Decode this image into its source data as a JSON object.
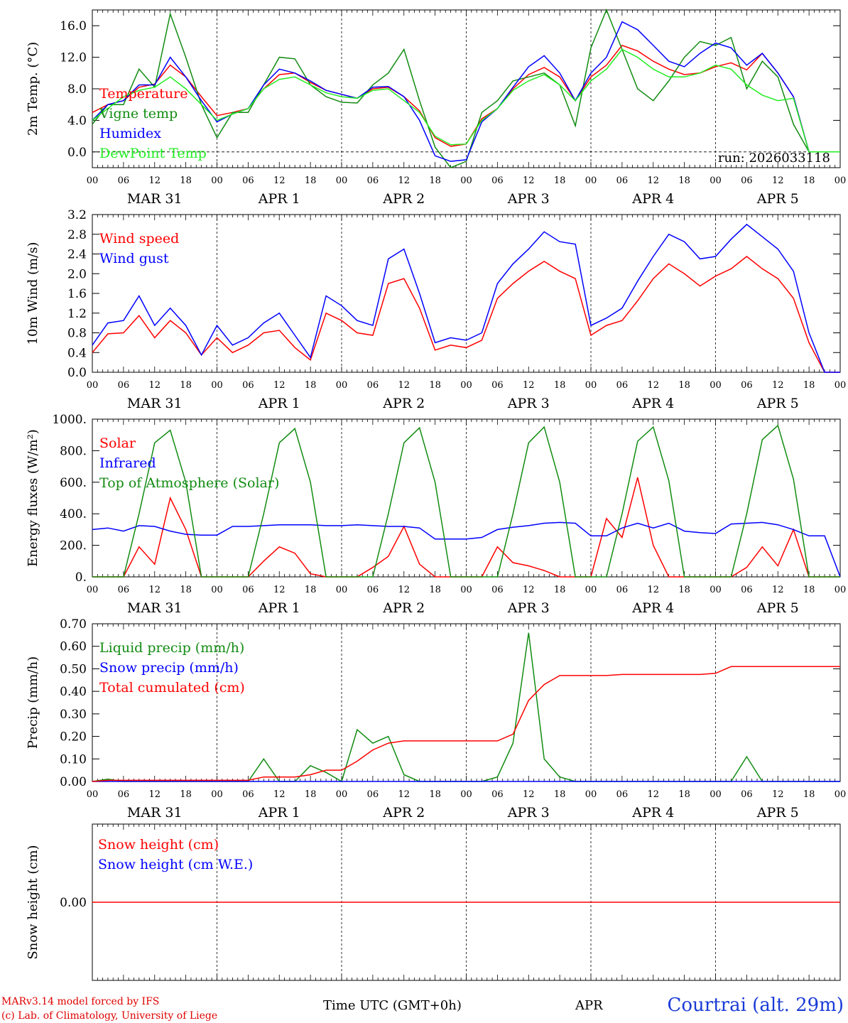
{
  "footer": {
    "credit_line1": "MARv3.14 model forced by IFS",
    "credit_line2": "(c) Lab. of Climatology, University of Liege",
    "x_axis_title": "Time UTC (GMT+0h)",
    "month_label": "APR",
    "station": "Courtrai (alt. 29m)"
  },
  "x_ticks": [
    "00",
    "06",
    "12",
    "18"
  ],
  "day_labels": [
    "MAR 31",
    "APR  1",
    "APR  2",
    "APR  3",
    "APR  4",
    "APR  5"
  ],
  "colors": {
    "red": "#ff0000",
    "green": "#128c12",
    "blue": "#0000ff",
    "lightgreen": "#22ee22"
  },
  "chart_data": [
    {
      "type": "line",
      "ylabel": "2m Temp. (°C)",
      "ylim": [
        -2.0,
        18.0
      ],
      "yticks": [
        0.0,
        4.0,
        8.0,
        12.0,
        16.0
      ],
      "yticklabels": [
        "0.0",
        "4.0",
        "8.0",
        "12.0",
        "16.0"
      ],
      "annotation": "run: 2026033118",
      "zero_line": true,
      "x_hours": [
        0,
        3,
        6,
        9,
        12,
        15,
        18,
        21,
        24,
        27,
        30,
        33,
        36,
        39,
        42,
        45,
        48,
        51,
        54,
        57,
        60,
        63,
        66,
        69,
        72,
        75,
        78,
        81,
        84,
        87,
        90,
        93,
        96,
        99,
        102,
        105,
        108,
        111,
        114,
        117,
        120,
        123,
        126,
        129,
        132,
        135,
        138,
        141,
        144
      ],
      "series": [
        {
          "name": "Temperature",
          "color": "red",
          "values": [
            5.0,
            6.0,
            6.5,
            8.2,
            8.6,
            11.0,
            9.5,
            7.0,
            4.6,
            5.0,
            5.5,
            8.0,
            9.8,
            10.0,
            8.8,
            7.8,
            7.3,
            6.8,
            8.0,
            8.2,
            7.0,
            5.2,
            1.8,
            0.7,
            1.0,
            4.2,
            5.5,
            8.0,
            9.8,
            10.7,
            9.5,
            6.5,
            9.5,
            11.0,
            13.5,
            12.8,
            11.5,
            10.5,
            9.8,
            10.0,
            10.8,
            11.3,
            10.4,
            12.5,
            10.0,
            7.0,
            0,
            0,
            0
          ]
        },
        {
          "name": "Vigne temp",
          "color": "green",
          "values": [
            3.5,
            6.0,
            6.0,
            10.5,
            8.2,
            17.5,
            12.0,
            6.0,
            1.8,
            5.0,
            5.0,
            8.5,
            12.0,
            11.8,
            8.5,
            7.0,
            6.3,
            6.2,
            8.5,
            10.0,
            13.0,
            6.5,
            0.6,
            -2.0,
            -1.2,
            5.0,
            6.5,
            9.0,
            9.5,
            10.0,
            8.5,
            3.3,
            13.2,
            18.5,
            13.0,
            8.0,
            6.5,
            9.0,
            12.0,
            14.0,
            13.5,
            14.5,
            8.0,
            11.5,
            9.5,
            3.5,
            0,
            0,
            0
          ]
        },
        {
          "name": "Humidex",
          "color": "blue",
          "values": [
            4.0,
            6.0,
            6.5,
            8.5,
            8.5,
            12.0,
            9.5,
            6.5,
            3.8,
            4.8,
            5.5,
            8.5,
            10.5,
            10.0,
            9.0,
            7.8,
            7.3,
            6.8,
            8.2,
            8.3,
            7.0,
            4.0,
            -0.5,
            -1.2,
            -1.0,
            3.8,
            5.5,
            8.2,
            10.8,
            12.2,
            10.0,
            6.5,
            10.0,
            12.0,
            16.5,
            15.5,
            13.5,
            11.5,
            10.8,
            12.5,
            13.8,
            13.2,
            11.0,
            12.5,
            10.0,
            7.0,
            0,
            0,
            0
          ]
        },
        {
          "name": "DewPoint Temp",
          "color": "lightgreen",
          "values": [
            4.0,
            5.5,
            7.0,
            7.8,
            8.2,
            9.5,
            8.0,
            6.0,
            4.0,
            4.8,
            5.5,
            8.0,
            9.2,
            9.5,
            8.5,
            7.5,
            7.0,
            6.8,
            7.8,
            8.0,
            6.5,
            5.0,
            2.0,
            0.9,
            1.0,
            4.0,
            5.5,
            7.8,
            9.0,
            9.8,
            8.5,
            6.5,
            9.0,
            10.5,
            13.0,
            12.0,
            10.5,
            9.5,
            9.5,
            10.0,
            11.0,
            10.5,
            8.5,
            7.2,
            6.5,
            6.8,
            0,
            0,
            0
          ]
        }
      ]
    },
    {
      "type": "line",
      "ylabel": "10m Wind (m/s)",
      "ylim": [
        0.0,
        3.2
      ],
      "yticks": [
        0.0,
        0.4,
        0.8,
        1.2,
        1.6,
        2.0,
        2.4,
        2.8,
        3.2
      ],
      "yticklabels": [
        "0.0",
        "0.4",
        "0.8",
        "1.2",
        "1.6",
        "2.0",
        "2.4",
        "2.8",
        "3.2"
      ],
      "x_hours": [
        0,
        3,
        6,
        9,
        12,
        15,
        18,
        21,
        24,
        27,
        30,
        33,
        36,
        39,
        42,
        45,
        48,
        51,
        54,
        57,
        60,
        63,
        66,
        69,
        72,
        75,
        78,
        81,
        84,
        87,
        90,
        93,
        96,
        99,
        102,
        105,
        108,
        111,
        114,
        117,
        120,
        123,
        126,
        129,
        132,
        135,
        138,
        141,
        144
      ],
      "series": [
        {
          "name": "Wind speed",
          "color": "red",
          "values": [
            0.4,
            0.78,
            0.8,
            1.15,
            0.7,
            1.05,
            0.8,
            0.35,
            0.7,
            0.4,
            0.55,
            0.8,
            0.85,
            0.5,
            0.25,
            1.2,
            1.05,
            0.8,
            0.75,
            1.8,
            1.9,
            1.3,
            0.45,
            0.55,
            0.5,
            0.65,
            1.5,
            1.8,
            2.05,
            2.25,
            2.05,
            1.9,
            0.75,
            0.95,
            1.05,
            1.45,
            1.9,
            2.2,
            2.0,
            1.75,
            1.95,
            2.1,
            2.35,
            2.1,
            1.9,
            1.5,
            0.6,
            0,
            0
          ]
        },
        {
          "name": "Wind gust",
          "color": "blue",
          "values": [
            0.55,
            1.0,
            1.05,
            1.55,
            0.95,
            1.3,
            0.95,
            0.35,
            0.95,
            0.55,
            0.7,
            1.0,
            1.2,
            0.75,
            0.3,
            1.55,
            1.35,
            1.05,
            0.95,
            2.3,
            2.5,
            1.6,
            0.6,
            0.7,
            0.65,
            0.8,
            1.8,
            2.2,
            2.5,
            2.85,
            2.65,
            2.6,
            0.95,
            1.1,
            1.3,
            1.85,
            2.35,
            2.8,
            2.65,
            2.3,
            2.35,
            2.7,
            3.0,
            2.75,
            2.5,
            2.05,
            0.8,
            0,
            0
          ]
        }
      ]
    },
    {
      "type": "line",
      "ylabel": "Energy fluxes (W/m²)",
      "ylim": [
        0,
        1000
      ],
      "yticks": [
        0,
        200,
        400,
        600,
        800,
        1000
      ],
      "yticklabels": [
        "0.",
        "200.",
        "400.",
        "600.",
        "800.",
        "1000."
      ],
      "x_hours": [
        0,
        3,
        6,
        9,
        12,
        15,
        18,
        21,
        24,
        27,
        30,
        33,
        36,
        39,
        42,
        45,
        48,
        51,
        54,
        57,
        60,
        63,
        66,
        69,
        72,
        75,
        78,
        81,
        84,
        87,
        90,
        93,
        96,
        99,
        102,
        105,
        108,
        111,
        114,
        117,
        120,
        123,
        126,
        129,
        132,
        135,
        138,
        141,
        144
      ],
      "series": [
        {
          "name": "Solar",
          "color": "red",
          "values": [
            0,
            0,
            0,
            190,
            80,
            500,
            300,
            0,
            0,
            0,
            0,
            100,
            190,
            150,
            20,
            0,
            0,
            0,
            60,
            130,
            320,
            80,
            0,
            0,
            0,
            0,
            190,
            90,
            70,
            40,
            0,
            0,
            0,
            370,
            250,
            630,
            200,
            0,
            0,
            0,
            0,
            0,
            60,
            190,
            70,
            300,
            0,
            0,
            0
          ]
        },
        {
          "name": "Infrared",
          "color": "blue",
          "values": [
            300,
            310,
            290,
            325,
            320,
            290,
            270,
            265,
            265,
            320,
            320,
            325,
            330,
            330,
            330,
            325,
            325,
            330,
            325,
            320,
            320,
            310,
            240,
            240,
            240,
            250,
            300,
            315,
            325,
            340,
            345,
            340,
            260,
            260,
            310,
            340,
            310,
            340,
            290,
            280,
            275,
            335,
            340,
            345,
            330,
            300,
            260,
            260,
            0
          ]
        },
        {
          "name": "Top of Atmosphere (Solar)",
          "color": "green",
          "values": [
            0,
            0,
            0,
            400,
            850,
            930,
            600,
            0,
            0,
            0,
            0,
            400,
            850,
            940,
            600,
            0,
            0,
            0,
            0,
            400,
            850,
            945,
            600,
            0,
            0,
            0,
            0,
            400,
            850,
            950,
            600,
            0,
            0,
            0,
            400,
            860,
            950,
            610,
            0,
            0,
            0,
            0,
            400,
            870,
            960,
            620,
            0,
            0,
            0
          ]
        }
      ]
    },
    {
      "type": "line",
      "ylabel": "Precip (mm/h)",
      "ylim": [
        0.0,
        0.7
      ],
      "yticks": [
        0.0,
        0.1,
        0.2,
        0.3,
        0.4,
        0.5,
        0.6,
        0.7
      ],
      "yticklabels": [
        "0.00",
        "0.10",
        "0.20",
        "0.30",
        "0.40",
        "0.50",
        "0.60",
        "0.70"
      ],
      "x_hours": [
        0,
        3,
        6,
        9,
        12,
        15,
        18,
        21,
        24,
        27,
        30,
        33,
        36,
        39,
        42,
        45,
        48,
        51,
        54,
        57,
        60,
        63,
        66,
        69,
        72,
        75,
        78,
        81,
        84,
        87,
        90,
        93,
        96,
        99,
        102,
        105,
        108,
        111,
        114,
        117,
        120,
        123,
        126,
        129,
        132,
        135,
        138,
        141,
        144
      ],
      "series": [
        {
          "name": "Liquid precip (mm/h)",
          "color": "green",
          "values": [
            0,
            0.01,
            0,
            0,
            0,
            0,
            0,
            0,
            0,
            0,
            0,
            0.1,
            0,
            0,
            0.07,
            0.04,
            0,
            0.23,
            0.17,
            0.2,
            0.03,
            0,
            0,
            0,
            0,
            0,
            0.02,
            0.17,
            0.66,
            0.1,
            0.02,
            0,
            0,
            0,
            0,
            0,
            0,
            0,
            0,
            0,
            0,
            0,
            0.11,
            0,
            0,
            0,
            0,
            0,
            0
          ]
        },
        {
          "name": "Snow precip (mm/h)",
          "color": "blue",
          "values": [
            0,
            0,
            0,
            0,
            0,
            0,
            0,
            0,
            0,
            0,
            0,
            0,
            0,
            0,
            0,
            0,
            0,
            0,
            0,
            0,
            0,
            0,
            0,
            0,
            0,
            0,
            0,
            0,
            0,
            0,
            0,
            0,
            0,
            0,
            0,
            0,
            0,
            0,
            0,
            0,
            0,
            0,
            0,
            0,
            0,
            0,
            0,
            0,
            0
          ]
        },
        {
          "name": "Total cumulated (cm)",
          "color": "red",
          "values": [
            0,
            0.005,
            0.005,
            0.005,
            0.005,
            0.005,
            0.005,
            0.005,
            0.005,
            0.005,
            0.005,
            0.02,
            0.02,
            0.02,
            0.03,
            0.05,
            0.05,
            0.09,
            0.14,
            0.17,
            0.18,
            0.18,
            0.18,
            0.18,
            0.18,
            0.18,
            0.18,
            0.21,
            0.36,
            0.43,
            0.47,
            0.47,
            0.47,
            0.47,
            0.475,
            0.475,
            0.475,
            0.475,
            0.475,
            0.475,
            0.48,
            0.51,
            0.51,
            0.51,
            0.51,
            0.51,
            0.51,
            0.51,
            0.51
          ]
        }
      ]
    },
    {
      "type": "line",
      "ylabel": "Snow height (cm)",
      "ylim": [
        -1,
        1
      ],
      "yticks": [
        0.0
      ],
      "yticklabels": [
        "0.00"
      ],
      "x_hours": [
        0,
        144
      ],
      "series": [
        {
          "name": "Snow height (cm)",
          "color": "red",
          "values": [
            0,
            0
          ]
        },
        {
          "name": "Snow height (cm W.E.)",
          "color": "blue",
          "values": []
        }
      ]
    }
  ]
}
